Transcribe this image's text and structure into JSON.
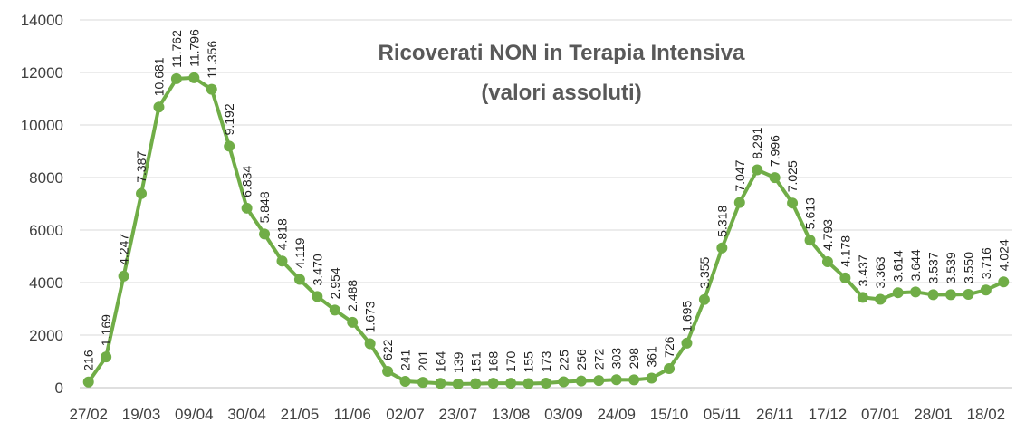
{
  "chart_data": {
    "type": "line",
    "title": "Ricoverati NON in Terapia Intensiva",
    "subtitle": "(valori assoluti)",
    "categories": [
      "27/02",
      null,
      null,
      "19/03",
      null,
      null,
      "09/04",
      null,
      null,
      "30/04",
      null,
      null,
      "21/05",
      null,
      null,
      "11/06",
      null,
      null,
      "02/07",
      null,
      null,
      "23/07",
      null,
      null,
      "13/08",
      null,
      null,
      "03/09",
      null,
      null,
      "24/09",
      null,
      null,
      "15/10",
      null,
      null,
      "05/11",
      null,
      null,
      "26/11",
      null,
      null,
      "17/12",
      null,
      null,
      "07/01",
      null,
      null,
      "28/01",
      null,
      null,
      "18/02",
      null
    ],
    "series": [
      {
        "name": "Ricoverati NON in Terapia Intensiva",
        "color": "#70ad47",
        "values": [
          216,
          1169,
          4247,
          7387,
          10681,
          11762,
          11796,
          11356,
          9192,
          6834,
          5848,
          4818,
          4119,
          3470,
          2954,
          2488,
          1673,
          622,
          241,
          201,
          164,
          139,
          151,
          168,
          170,
          155,
          173,
          225,
          256,
          272,
          303,
          298,
          361,
          726,
          1695,
          3355,
          5318,
          7047,
          8291,
          7996,
          7025,
          5613,
          4793,
          4178,
          3437,
          3363,
          3614,
          3644,
          3537,
          3539,
          3550,
          3716,
          4024
        ],
        "value_labels": [
          "216",
          "1.169",
          "4.247",
          "7.387",
          "10.681",
          "11.762",
          "11.796",
          "11.356",
          "9.192",
          "6.834",
          "5.848",
          "4.818",
          "4.119",
          "3.470",
          "2.954",
          "2.488",
          "1.673",
          "622",
          "241",
          "201",
          "164",
          "139",
          "151",
          "168",
          "170",
          "155",
          "173",
          "225",
          "256",
          "272",
          "303",
          "298",
          "361",
          "726",
          "1.695",
          "3.355",
          "5.318",
          "7.047",
          "8.291",
          "7.996",
          "7.025",
          "5.613",
          "4.793",
          "4.178",
          "3.437",
          "3.363",
          "3.614",
          "3.644",
          "3.537",
          "3.539",
          "3.550",
          "3.716",
          "4.024"
        ]
      }
    ],
    "ylim": [
      0,
      14000
    ],
    "yticks": [
      0,
      2000,
      4000,
      6000,
      8000,
      10000,
      12000,
      14000
    ],
    "grid": true
  }
}
